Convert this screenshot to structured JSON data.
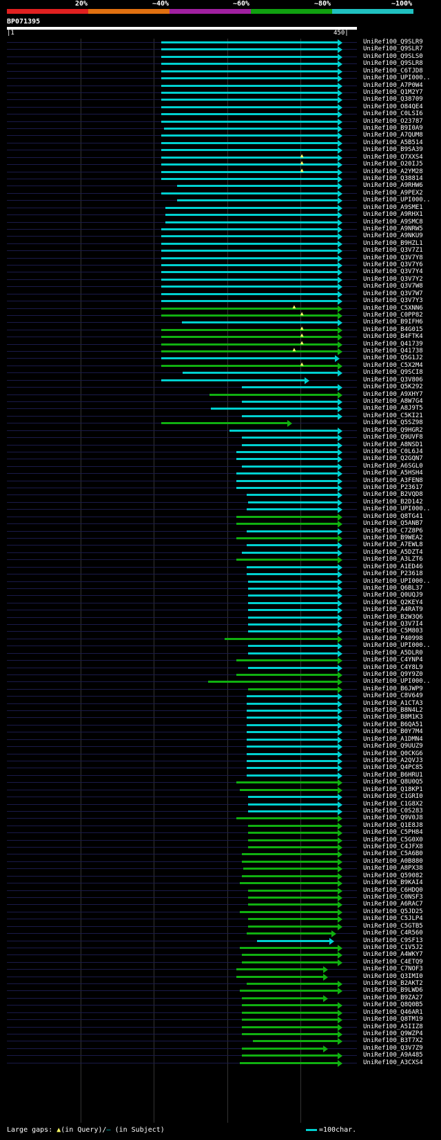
{
  "header": {
    "pct_labels": [
      "20%",
      "~40%",
      "~60%",
      "~80%",
      "~100%"
    ],
    "bar_colors": [
      "#e02020",
      "#e07010",
      "#a020a0",
      "#10a010",
      "#20c0c0"
    ],
    "query_id": "BP071395",
    "query_start": "|1",
    "query_end": "450|"
  },
  "legend": {
    "text": "Large gaps: ",
    "query_symbol": "▲",
    "query_text": "(in Query)/",
    "subject_symbol": "–",
    "subject_text": " (in Subject)",
    "scale_text": "=100char."
  },
  "colors": {
    "cyan": "#00d0d0",
    "green": "#10b010",
    "bg_line": "#1a1a4a",
    "text": "#ffffff"
  },
  "hits": [
    {
      "label": "UniRef100_Q9SLR9",
      "start": 0.457,
      "end": 0.994,
      "color": "cyan",
      "arrow": true
    },
    {
      "label": "UniRef100_Q9SLR7",
      "start": 0.457,
      "end": 0.994,
      "color": "cyan",
      "arrow": true
    },
    {
      "label": "UniRef100_Q9SLS0",
      "start": 0.457,
      "end": 0.994,
      "color": "cyan",
      "arrow": true
    },
    {
      "label": "UniRef100_Q9SLR8",
      "start": 0.457,
      "end": 0.994,
      "color": "cyan",
      "arrow": true
    },
    {
      "label": "UniRef100_C6TJD8",
      "start": 0.457,
      "end": 0.994,
      "color": "cyan",
      "arrow": true
    },
    {
      "label": "UniRef100_UPI000..",
      "start": 0.457,
      "end": 0.994,
      "color": "cyan",
      "arrow": true
    },
    {
      "label": "UniRef100_A7P0W4",
      "start": 0.457,
      "end": 0.994,
      "color": "cyan",
      "arrow": true
    },
    {
      "label": "UniRef100_Q1M2Y7",
      "start": 0.457,
      "end": 0.994,
      "color": "cyan",
      "arrow": true
    },
    {
      "label": "UniRef100_Q38709",
      "start": 0.457,
      "end": 0.994,
      "color": "cyan",
      "arrow": true
    },
    {
      "label": "UniRef100_O84QE4",
      "start": 0.457,
      "end": 0.994,
      "color": "cyan",
      "arrow": true
    },
    {
      "label": "UniRef100_C0LSI6",
      "start": 0.457,
      "end": 0.994,
      "color": "cyan",
      "arrow": true
    },
    {
      "label": "UniRef100_O23787",
      "start": 0.457,
      "end": 0.994,
      "color": "cyan",
      "arrow": true
    },
    {
      "label": "UniRef100_B9I0A9",
      "start": 0.465,
      "end": 0.994,
      "color": "cyan",
      "arrow": true
    },
    {
      "label": "UniRef100_A7QUM8",
      "start": 0.457,
      "end": 0.994,
      "color": "cyan",
      "arrow": true
    },
    {
      "label": "UniRef100_A5B514",
      "start": 0.457,
      "end": 0.994,
      "color": "cyan",
      "arrow": true
    },
    {
      "label": "UniRef100_B9SA39",
      "start": 0.457,
      "end": 0.994,
      "color": "cyan",
      "arrow": true
    },
    {
      "label": "UniRef100_Q7XXS4",
      "start": 0.457,
      "end": 0.994,
      "color": "cyan",
      "arrow": true,
      "gap": 0.875
    },
    {
      "label": "UniRef100_O20IJ5",
      "start": 0.457,
      "end": 0.994,
      "color": "cyan",
      "arrow": true,
      "gap": 0.875
    },
    {
      "label": "UniRef100_A2YM28",
      "start": 0.457,
      "end": 0.994,
      "color": "cyan",
      "arrow": true,
      "gap": 0.875
    },
    {
      "label": "UniRef100_Q38814",
      "start": 0.457,
      "end": 0.994,
      "color": "cyan",
      "arrow": true
    },
    {
      "label": "UniRef100_A9RHW6",
      "start": 0.504,
      "end": 0.994,
      "color": "cyan",
      "arrow": true
    },
    {
      "label": "UniRef100_A9PEX2",
      "start": 0.457,
      "end": 0.994,
      "color": "cyan",
      "arrow": true
    },
    {
      "label": "UniRef100_UPI000..",
      "start": 0.504,
      "end": 0.994,
      "color": "cyan",
      "arrow": true
    },
    {
      "label": "UniRef100_A9SME1",
      "start": 0.47,
      "end": 0.994,
      "color": "cyan",
      "arrow": true
    },
    {
      "label": "UniRef100_A9RHX1",
      "start": 0.47,
      "end": 0.994,
      "color": "cyan",
      "arrow": true
    },
    {
      "label": "UniRef100_A9SMC8",
      "start": 0.47,
      "end": 0.994,
      "color": "cyan",
      "arrow": true
    },
    {
      "label": "UniRef100_A9NRW5",
      "start": 0.457,
      "end": 0.994,
      "color": "cyan",
      "arrow": true
    },
    {
      "label": "UniRef100_A9NKU9",
      "start": 0.457,
      "end": 0.994,
      "color": "cyan",
      "arrow": true
    },
    {
      "label": "UniRef100_B9HZL1",
      "start": 0.457,
      "end": 0.994,
      "color": "cyan",
      "arrow": true
    },
    {
      "label": "UniRef100_Q3V7Z1",
      "start": 0.457,
      "end": 0.994,
      "color": "cyan",
      "arrow": true
    },
    {
      "label": "UniRef100_Q3V7Y8",
      "start": 0.457,
      "end": 0.994,
      "color": "cyan",
      "arrow": true
    },
    {
      "label": "UniRef100_Q3V7Y6",
      "start": 0.457,
      "end": 0.994,
      "color": "cyan",
      "arrow": true
    },
    {
      "label": "UniRef100_Q3V7Y4",
      "start": 0.457,
      "end": 0.994,
      "color": "cyan",
      "arrow": true
    },
    {
      "label": "UniRef100_Q3V7Y2",
      "start": 0.457,
      "end": 0.994,
      "color": "cyan",
      "arrow": true
    },
    {
      "label": "UniRef100_Q3V7W8",
      "start": 0.457,
      "end": 0.994,
      "color": "cyan",
      "arrow": true
    },
    {
      "label": "UniRef100_Q3V7W7",
      "start": 0.457,
      "end": 0.994,
      "color": "cyan",
      "arrow": true
    },
    {
      "label": "UniRef100_Q3V7Y3",
      "start": 0.457,
      "end": 0.994,
      "color": "cyan",
      "arrow": true
    },
    {
      "label": "UniRef100_C5XNN6",
      "start": 0.457,
      "end": 0.994,
      "color": "green",
      "arrow": true,
      "gap": 0.852
    },
    {
      "label": "UniRef100_C0PP82",
      "start": 0.457,
      "end": 0.994,
      "color": "green",
      "arrow": true,
      "gap": 0.875
    },
    {
      "label": "UniRef100_B9IFH6",
      "start": 0.518,
      "end": 0.994,
      "color": "cyan",
      "arrow": true
    },
    {
      "label": "UniRef100_B4G015",
      "start": 0.457,
      "end": 0.994,
      "color": "green",
      "arrow": true,
      "gap": 0.875
    },
    {
      "label": "UniRef100_B4FTK4",
      "start": 0.457,
      "end": 0.994,
      "color": "green",
      "arrow": true,
      "gap": 0.875
    },
    {
      "label": "UniRef100_Q41739",
      "start": 0.457,
      "end": 0.994,
      "color": "green",
      "arrow": true,
      "gap": 0.875
    },
    {
      "label": "UniRef100_Q41738",
      "start": 0.457,
      "end": 0.994,
      "color": "green",
      "arrow": true,
      "gap": 0.852
    },
    {
      "label": "UniRef100_Q5G1J2",
      "start": 0.457,
      "end": 0.985,
      "color": "cyan",
      "arrow": true
    },
    {
      "label": "UniRef100_C5X2M4",
      "start": 0.457,
      "end": 0.994,
      "color": "green",
      "arrow": true,
      "gap": 0.875
    },
    {
      "label": "UniRef100_Q9SCI8",
      "start": 0.52,
      "end": 0.994,
      "color": "cyan",
      "arrow": true
    },
    {
      "label": "UniRef100_Q3V806",
      "start": 0.457,
      "end": 0.895,
      "color": "cyan",
      "arrow": true
    },
    {
      "label": "UniRef100_Q5K292",
      "start": 0.695,
      "end": 0.994,
      "color": "cyan",
      "arrow": true
    },
    {
      "label": "UniRef100_A9XHY7",
      "start": 0.6,
      "end": 0.994,
      "color": "green",
      "arrow": true
    },
    {
      "label": "UniRef100_A8W7G4",
      "start": 0.695,
      "end": 0.994,
      "color": "cyan",
      "arrow": true
    },
    {
      "label": "UniRef100_A8J9T5",
      "start": 0.605,
      "end": 0.994,
      "color": "cyan",
      "arrow": true
    },
    {
      "label": "UniRef100_C5KI21",
      "start": 0.695,
      "end": 0.994,
      "color": "cyan",
      "arrow": true
    },
    {
      "label": "UniRef100_Q5SZ98",
      "start": 0.457,
      "end": 0.845,
      "color": "green",
      "arrow": true
    },
    {
      "label": "UniRef100_Q9HGR2",
      "start": 0.66,
      "end": 0.994,
      "color": "cyan",
      "arrow": true
    },
    {
      "label": "UniRef100_Q9UVF8",
      "start": 0.695,
      "end": 0.994,
      "color": "cyan",
      "arrow": true
    },
    {
      "label": "UniRef100_A8NSD1",
      "start": 0.695,
      "end": 0.994,
      "color": "cyan",
      "arrow": true
    },
    {
      "label": "UniRef100_C0L6J4",
      "start": 0.68,
      "end": 0.994,
      "color": "cyan",
      "arrow": true
    },
    {
      "label": "UniRef100_Q2GQN7",
      "start": 0.68,
      "end": 0.994,
      "color": "cyan",
      "arrow": true
    },
    {
      "label": "UniRef100_A6SGL0",
      "start": 0.695,
      "end": 0.994,
      "color": "cyan",
      "arrow": true
    },
    {
      "label": "UniRef100_A5HSH4",
      "start": 0.68,
      "end": 0.994,
      "color": "cyan",
      "arrow": true
    },
    {
      "label": "UniRef100_A3FEN8",
      "start": 0.68,
      "end": 0.994,
      "color": "cyan",
      "arrow": true
    },
    {
      "label": "UniRef100_P23617",
      "start": 0.68,
      "end": 0.994,
      "color": "cyan",
      "arrow": true
    },
    {
      "label": "UniRef100_B2VQD8",
      "start": 0.71,
      "end": 0.994,
      "color": "cyan",
      "arrow": true
    },
    {
      "label": "UniRef100_B2D142",
      "start": 0.715,
      "end": 0.994,
      "color": "cyan",
      "arrow": true
    },
    {
      "label": "UniRef100_UPI000..",
      "start": 0.71,
      "end": 0.994,
      "color": "cyan",
      "arrow": true
    },
    {
      "label": "UniRef100_Q8TG41",
      "start": 0.68,
      "end": 0.994,
      "color": "green",
      "arrow": true
    },
    {
      "label": "UniRef100_Q5ANB7",
      "start": 0.68,
      "end": 0.994,
      "color": "green",
      "arrow": true
    },
    {
      "label": "UniRef100_C7Z8P6",
      "start": 0.71,
      "end": 0.994,
      "color": "cyan",
      "arrow": true
    },
    {
      "label": "UniRef100_B9WEA2",
      "start": 0.68,
      "end": 0.994,
      "color": "green",
      "arrow": true
    },
    {
      "label": "UniRef100_A7EWL8",
      "start": 0.71,
      "end": 0.994,
      "color": "cyan",
      "arrow": true
    },
    {
      "label": "UniRef100_A5DZT4",
      "start": 0.695,
      "end": 0.994,
      "color": "cyan",
      "arrow": true
    },
    {
      "label": "UniRef100_A3LZT6",
      "start": 0.68,
      "end": 0.994,
      "color": "green",
      "arrow": true
    },
    {
      "label": "UniRef100_A1ED46",
      "start": 0.71,
      "end": 0.994,
      "color": "cyan",
      "arrow": true
    },
    {
      "label": "UniRef100_P23618",
      "start": 0.71,
      "end": 0.994,
      "color": "cyan",
      "arrow": true
    },
    {
      "label": "UniRef100_UPI000..",
      "start": 0.715,
      "end": 0.994,
      "color": "cyan",
      "arrow": true
    },
    {
      "label": "UniRef100_Q6BL37",
      "start": 0.715,
      "end": 0.994,
      "color": "cyan",
      "arrow": true
    },
    {
      "label": "UniRef100_Q0UQJ9",
      "start": 0.715,
      "end": 0.994,
      "color": "cyan",
      "arrow": true
    },
    {
      "label": "UniRef100_Q2KEY4",
      "start": 0.715,
      "end": 0.994,
      "color": "cyan",
      "arrow": true
    },
    {
      "label": "UniRef100_A4RAT9",
      "start": 0.715,
      "end": 0.994,
      "color": "cyan",
      "arrow": true
    },
    {
      "label": "UniRef100_B2W3Q6",
      "start": 0.715,
      "end": 0.994,
      "color": "cyan",
      "arrow": true
    },
    {
      "label": "UniRef100_Q3V7I4",
      "start": 0.715,
      "end": 0.994,
      "color": "cyan",
      "arrow": true
    },
    {
      "label": "UniRef100_C5M803",
      "start": 0.715,
      "end": 0.994,
      "color": "cyan",
      "arrow": true
    },
    {
      "label": "UniRef100_P40998",
      "start": 0.645,
      "end": 0.994,
      "color": "green",
      "arrow": true
    },
    {
      "label": "UniRef100_UPI000..",
      "start": 0.715,
      "end": 0.994,
      "color": "cyan",
      "arrow": true
    },
    {
      "label": "UniRef100_A5DLR0",
      "start": 0.715,
      "end": 0.994,
      "color": "cyan",
      "arrow": true
    },
    {
      "label": "UniRef100_C4YNP4",
      "start": 0.68,
      "end": 0.994,
      "color": "green",
      "arrow": true
    },
    {
      "label": "UniRef100_C4Y8L9",
      "start": 0.715,
      "end": 0.994,
      "color": "cyan",
      "arrow": true
    },
    {
      "label": "UniRef100_Q9Y9Z0",
      "start": 0.68,
      "end": 0.994,
      "color": "green",
      "arrow": true
    },
    {
      "label": "UniRef100_UPI000..",
      "start": 0.595,
      "end": 0.994,
      "color": "green",
      "arrow": true
    },
    {
      "label": "UniRef100_B6JWP9",
      "start": 0.715,
      "end": 0.994,
      "color": "green",
      "arrow": true
    },
    {
      "label": "UniRef100_C8V649",
      "start": 0.71,
      "end": 0.994,
      "color": "cyan",
      "arrow": true
    },
    {
      "label": "UniRef100_A1CTA3",
      "start": 0.71,
      "end": 0.994,
      "color": "cyan",
      "arrow": true
    },
    {
      "label": "UniRef100_B8N4L2",
      "start": 0.71,
      "end": 0.994,
      "color": "cyan",
      "arrow": true
    },
    {
      "label": "UniRef100_B8M1K3",
      "start": 0.71,
      "end": 0.994,
      "color": "cyan",
      "arrow": true
    },
    {
      "label": "UniRef100_B6QA51",
      "start": 0.71,
      "end": 0.994,
      "color": "cyan",
      "arrow": true
    },
    {
      "label": "UniRef100_B0Y7M4",
      "start": 0.71,
      "end": 0.994,
      "color": "cyan",
      "arrow": true
    },
    {
      "label": "UniRef100_A1DMN4",
      "start": 0.71,
      "end": 0.994,
      "color": "cyan",
      "arrow": true
    },
    {
      "label": "UniRef100_Q9UUZ9",
      "start": 0.71,
      "end": 0.994,
      "color": "cyan",
      "arrow": true
    },
    {
      "label": "UniRef100_Q0CKG6",
      "start": 0.71,
      "end": 0.994,
      "color": "cyan",
      "arrow": true
    },
    {
      "label": "UniRef100_A2QVJ3",
      "start": 0.71,
      "end": 0.994,
      "color": "cyan",
      "arrow": true
    },
    {
      "label": "UniRef100_Q4PC85",
      "start": 0.71,
      "end": 0.994,
      "color": "cyan",
      "arrow": true
    },
    {
      "label": "UniRef100_B6HRU1",
      "start": 0.71,
      "end": 0.994,
      "color": "cyan",
      "arrow": true
    },
    {
      "label": "UniRef100_Q8U0Q5",
      "start": 0.68,
      "end": 0.994,
      "color": "green",
      "arrow": true
    },
    {
      "label": "UniRef100_Q18KP1",
      "start": 0.69,
      "end": 0.994,
      "color": "green",
      "arrow": true
    },
    {
      "label": "UniRef100_C1GRI0",
      "start": 0.715,
      "end": 0.994,
      "color": "cyan",
      "arrow": true
    },
    {
      "label": "UniRef100_C1G8X2",
      "start": 0.715,
      "end": 0.994,
      "color": "cyan",
      "arrow": true
    },
    {
      "label": "UniRef100_C0S283",
      "start": 0.715,
      "end": 0.994,
      "color": "cyan",
      "arrow": true
    },
    {
      "label": "UniRef100_Q9V0J8",
      "start": 0.68,
      "end": 0.994,
      "color": "green",
      "arrow": true
    },
    {
      "label": "UniRef100_Q1E8J8",
      "start": 0.715,
      "end": 0.994,
      "color": "green",
      "arrow": true
    },
    {
      "label": "UniRef100_C5PH84",
      "start": 0.715,
      "end": 0.994,
      "color": "green",
      "arrow": true
    },
    {
      "label": "UniRef100_C5G0X0",
      "start": 0.715,
      "end": 0.994,
      "color": "green",
      "arrow": true
    },
    {
      "label": "UniRef100_C4JFX8",
      "start": 0.715,
      "end": 0.994,
      "color": "green",
      "arrow": true
    },
    {
      "label": "UniRef100_C5A6B0",
      "start": 0.695,
      "end": 0.994,
      "color": "green",
      "arrow": true
    },
    {
      "label": "UniRef100_A0B880",
      "start": 0.695,
      "end": 0.994,
      "color": "green",
      "arrow": true
    },
    {
      "label": "UniRef100_A8PX38",
      "start": 0.7,
      "end": 0.994,
      "color": "green",
      "arrow": true
    },
    {
      "label": "UniRef100_Q59082",
      "start": 0.695,
      "end": 0.994,
      "color": "green",
      "arrow": true
    },
    {
      "label": "UniRef100_B9KAI4",
      "start": 0.69,
      "end": 0.994,
      "color": "green",
      "arrow": true
    },
    {
      "label": "UniRef100_C6HDQ0",
      "start": 0.715,
      "end": 0.994,
      "color": "green",
      "arrow": true
    },
    {
      "label": "UniRef100_C0NSF3",
      "start": 0.715,
      "end": 0.994,
      "color": "green",
      "arrow": true
    },
    {
      "label": "UniRef100_A6RAC7",
      "start": 0.715,
      "end": 0.994,
      "color": "green",
      "arrow": true
    },
    {
      "label": "UniRef100_Q5JD25",
      "start": 0.69,
      "end": 0.994,
      "color": "green",
      "arrow": true
    },
    {
      "label": "UniRef100_C5JLP4",
      "start": 0.715,
      "end": 0.994,
      "color": "green",
      "arrow": true
    },
    {
      "label": "UniRef100_C5GTB5",
      "start": 0.715,
      "end": 0.994,
      "color": "green",
      "arrow": true
    },
    {
      "label": "UniRef100_C4R560",
      "start": 0.71,
      "end": 0.975,
      "color": "green",
      "arrow": true
    },
    {
      "label": "UniRef100_C9SF13",
      "start": 0.74,
      "end": 0.97,
      "color": "cyan",
      "arrow": true
    },
    {
      "label": "UniRef100_C1V5J2",
      "start": 0.69,
      "end": 0.994,
      "color": "green",
      "arrow": true
    },
    {
      "label": "UniRef100_A4WKY7",
      "start": 0.695,
      "end": 0.994,
      "color": "green",
      "arrow": true
    },
    {
      "label": "UniRef100_C4ETQ9",
      "start": 0.695,
      "end": 0.994,
      "color": "green",
      "arrow": true
    },
    {
      "label": "UniRef100_C7NOF3",
      "start": 0.68,
      "end": 0.95,
      "color": "green",
      "arrow": true
    },
    {
      "label": "UniRef100_Q3IMI0",
      "start": 0.68,
      "end": 0.95,
      "color": "green",
      "arrow": true
    },
    {
      "label": "UniRef100_B2AKT2",
      "start": 0.71,
      "end": 0.994,
      "color": "green",
      "arrow": true
    },
    {
      "label": "UniRef100_B9LWD6",
      "start": 0.69,
      "end": 0.994,
      "color": "green",
      "arrow": true
    },
    {
      "label": "UniRef100_B9ZA27",
      "start": 0.695,
      "end": 0.95,
      "color": "green",
      "arrow": true
    },
    {
      "label": "UniRef100_Q8Q0B5",
      "start": 0.695,
      "end": 0.994,
      "color": "green",
      "arrow": true
    },
    {
      "label": "UniRef100_Q46AR1",
      "start": 0.695,
      "end": 0.994,
      "color": "green",
      "arrow": true
    },
    {
      "label": "UniRef100_Q8TM19",
      "start": 0.695,
      "end": 0.994,
      "color": "green",
      "arrow": true
    },
    {
      "label": "UniRef100_A5IIZ8",
      "start": 0.695,
      "end": 0.994,
      "color": "green",
      "arrow": true
    },
    {
      "label": "UniRef100_Q9WZP4",
      "start": 0.695,
      "end": 0.994,
      "color": "green",
      "arrow": true
    },
    {
      "label": "UniRef100_B3T7X2",
      "start": 0.728,
      "end": 0.994,
      "color": "green",
      "arrow": true
    },
    {
      "label": "UniRef100_Q3V7Z9",
      "start": 0.695,
      "end": 0.95,
      "color": "green",
      "arrow": true
    },
    {
      "label": "UniRef100_A9A485",
      "start": 0.695,
      "end": 0.994,
      "color": "green",
      "arrow": true
    },
    {
      "label": "UniRef100_A3CXS4",
      "start": 0.69,
      "end": 0.994,
      "color": "green",
      "arrow": true
    }
  ]
}
